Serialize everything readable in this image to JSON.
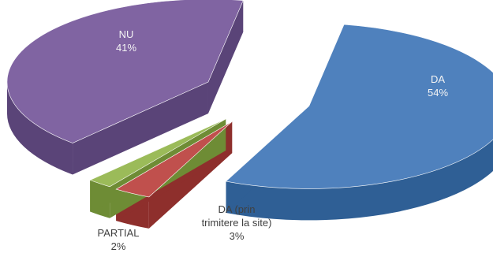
{
  "chart_data": {
    "type": "pie",
    "style": "3d-exploded",
    "slices": [
      {
        "name": "DA",
        "value": 54,
        "value_label": "54%",
        "color": "#4F81BD",
        "side_color": "#2F5F95"
      },
      {
        "name": "DA (prin trimitere la site)",
        "name_lines": [
          "DA (prin",
          "trimitere la site)"
        ],
        "value": 3,
        "value_label": "3%",
        "color": "#C0504D",
        "side_color": "#8E2F2C"
      },
      {
        "name": "PARTIAL",
        "value": 2,
        "value_label": "2%",
        "color": "#9BBB59",
        "side_color": "#6E8C35"
      },
      {
        "name": "NU",
        "value": 41,
        "value_label": "41%",
        "color": "#8064A2",
        "side_color": "#5A4478"
      }
    ],
    "legend": "none",
    "grid": false
  }
}
